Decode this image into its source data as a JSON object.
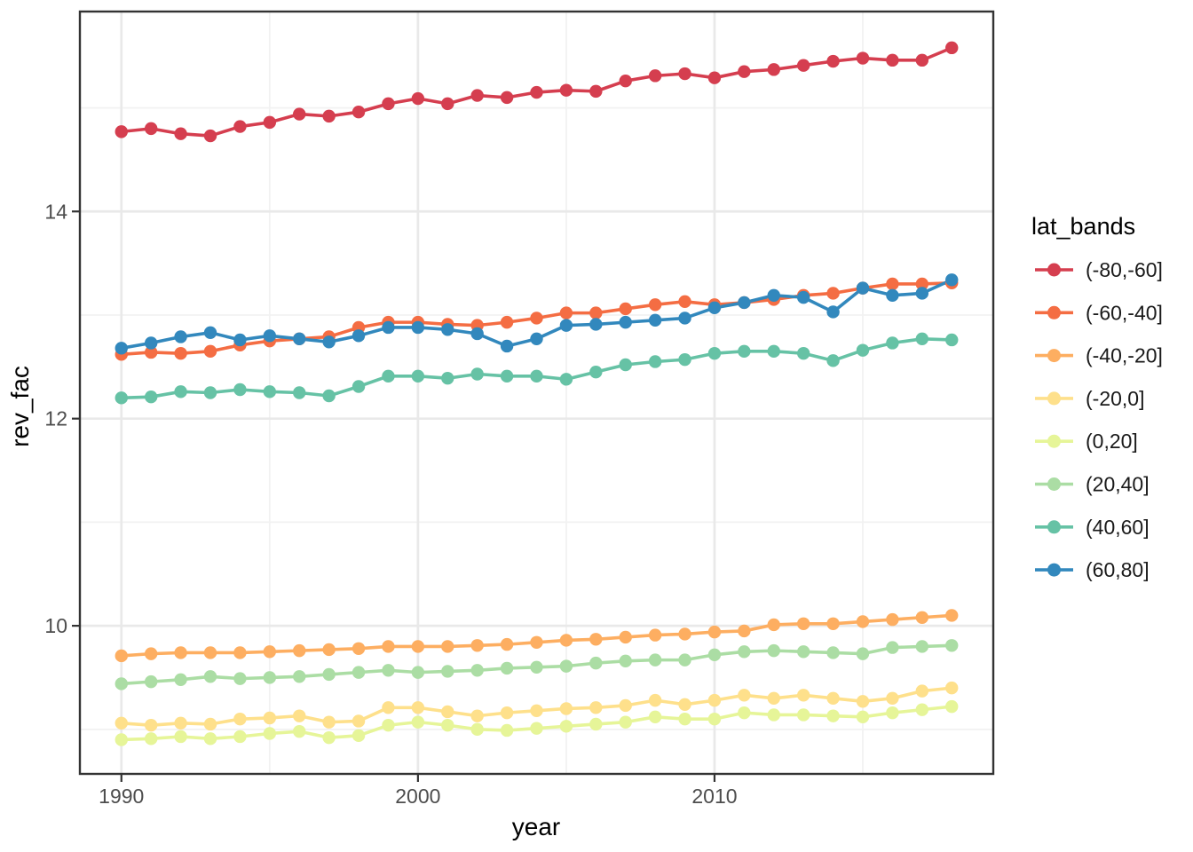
{
  "chart_data": {
    "type": "line",
    "title": "",
    "xlabel": "year",
    "ylabel": "rev_fac",
    "legend_title": "lat_bands",
    "legend_position": "right",
    "grid": true,
    "xlim": [
      1988.6,
      2019.4
    ],
    "ylim": [
      8.57,
      15.93
    ],
    "x_ticks": [
      1990,
      2000,
      2010
    ],
    "x_minor_ticks": [
      1995,
      2005,
      2015
    ],
    "y_ticks": [
      10,
      12,
      14
    ],
    "y_minor_ticks": [
      9,
      11,
      13,
      15
    ],
    "x": [
      1990,
      1991,
      1992,
      1993,
      1994,
      1995,
      1996,
      1997,
      1998,
      1999,
      2000,
      2001,
      2002,
      2003,
      2004,
      2005,
      2006,
      2007,
      2008,
      2009,
      2010,
      2011,
      2012,
      2013,
      2014,
      2015,
      2016,
      2017,
      2018
    ],
    "series": [
      {
        "name": "(-80,-60]",
        "color": "#d53e4f",
        "values": [
          14.77,
          14.8,
          14.75,
          14.73,
          14.82,
          14.86,
          14.94,
          14.92,
          14.96,
          15.04,
          15.09,
          15.04,
          15.12,
          15.1,
          15.15,
          15.17,
          15.16,
          15.26,
          15.31,
          15.33,
          15.29,
          15.35,
          15.37,
          15.41,
          15.45,
          15.48,
          15.46,
          15.46,
          15.58
        ]
      },
      {
        "name": "(-60,-40]",
        "color": "#f46d43",
        "values": [
          12.62,
          12.64,
          12.63,
          12.65,
          12.71,
          12.75,
          12.77,
          12.79,
          12.88,
          12.93,
          12.93,
          12.91,
          12.9,
          12.93,
          12.97,
          13.02,
          13.02,
          13.06,
          13.1,
          13.13,
          13.1,
          13.12,
          13.15,
          13.19,
          13.21,
          13.26,
          13.3,
          13.3,
          13.31
        ]
      },
      {
        "name": "(-40,-20]",
        "color": "#fdae61",
        "values": [
          9.71,
          9.73,
          9.74,
          9.74,
          9.74,
          9.75,
          9.76,
          9.77,
          9.78,
          9.8,
          9.8,
          9.8,
          9.81,
          9.82,
          9.84,
          9.86,
          9.87,
          9.89,
          9.91,
          9.92,
          9.94,
          9.95,
          10.01,
          10.02,
          10.02,
          10.04,
          10.06,
          10.08,
          10.1
        ]
      },
      {
        "name": "(-20,0]",
        "color": "#fee08b",
        "values": [
          9.06,
          9.04,
          9.06,
          9.05,
          9.1,
          9.11,
          9.13,
          9.07,
          9.08,
          9.21,
          9.21,
          9.17,
          9.13,
          9.16,
          9.18,
          9.2,
          9.21,
          9.23,
          9.28,
          9.24,
          9.28,
          9.33,
          9.3,
          9.33,
          9.3,
          9.27,
          9.3,
          9.37,
          9.4
        ]
      },
      {
        "name": "(0,20]",
        "color": "#e6f598",
        "values": [
          8.9,
          8.91,
          8.93,
          8.91,
          8.93,
          8.96,
          8.98,
          8.92,
          8.94,
          9.04,
          9.07,
          9.04,
          9.0,
          8.99,
          9.01,
          9.03,
          9.05,
          9.07,
          9.12,
          9.1,
          9.1,
          9.16,
          9.14,
          9.14,
          9.13,
          9.12,
          9.16,
          9.19,
          9.22
        ]
      },
      {
        "name": "(20,40]",
        "color": "#abdda4",
        "values": [
          9.44,
          9.46,
          9.48,
          9.51,
          9.49,
          9.5,
          9.51,
          9.53,
          9.55,
          9.57,
          9.55,
          9.56,
          9.57,
          9.59,
          9.6,
          9.61,
          9.64,
          9.66,
          9.67,
          9.67,
          9.72,
          9.75,
          9.76,
          9.75,
          9.74,
          9.73,
          9.79,
          9.8,
          9.81
        ]
      },
      {
        "name": "(40,60]",
        "color": "#66c2a5",
        "values": [
          12.2,
          12.21,
          12.26,
          12.25,
          12.28,
          12.26,
          12.25,
          12.22,
          12.31,
          12.41,
          12.41,
          12.39,
          12.43,
          12.41,
          12.41,
          12.38,
          12.45,
          12.52,
          12.55,
          12.57,
          12.63,
          12.65,
          12.65,
          12.63,
          12.56,
          12.66,
          12.73,
          12.77,
          12.76
        ]
      },
      {
        "name": "(60,80]",
        "color": "#3288bd",
        "values": [
          12.68,
          12.73,
          12.79,
          12.83,
          12.76,
          12.8,
          12.77,
          12.74,
          12.8,
          12.88,
          12.88,
          12.86,
          12.82,
          12.7,
          12.77,
          12.9,
          12.91,
          12.93,
          12.95,
          12.97,
          13.07,
          13.12,
          13.19,
          13.17,
          13.03,
          13.26,
          13.19,
          13.21,
          13.34
        ]
      }
    ],
    "colors": {
      "panel_background": "#ffffff",
      "panel_border": "#333333",
      "grid_major": "#e9e9e9",
      "grid_minor": "#f2f2f2",
      "tick_mark": "#333333",
      "tick_label": "#4d4d4d",
      "axis_title": "#000000",
      "legend_text": "#1a1a1a"
    }
  }
}
